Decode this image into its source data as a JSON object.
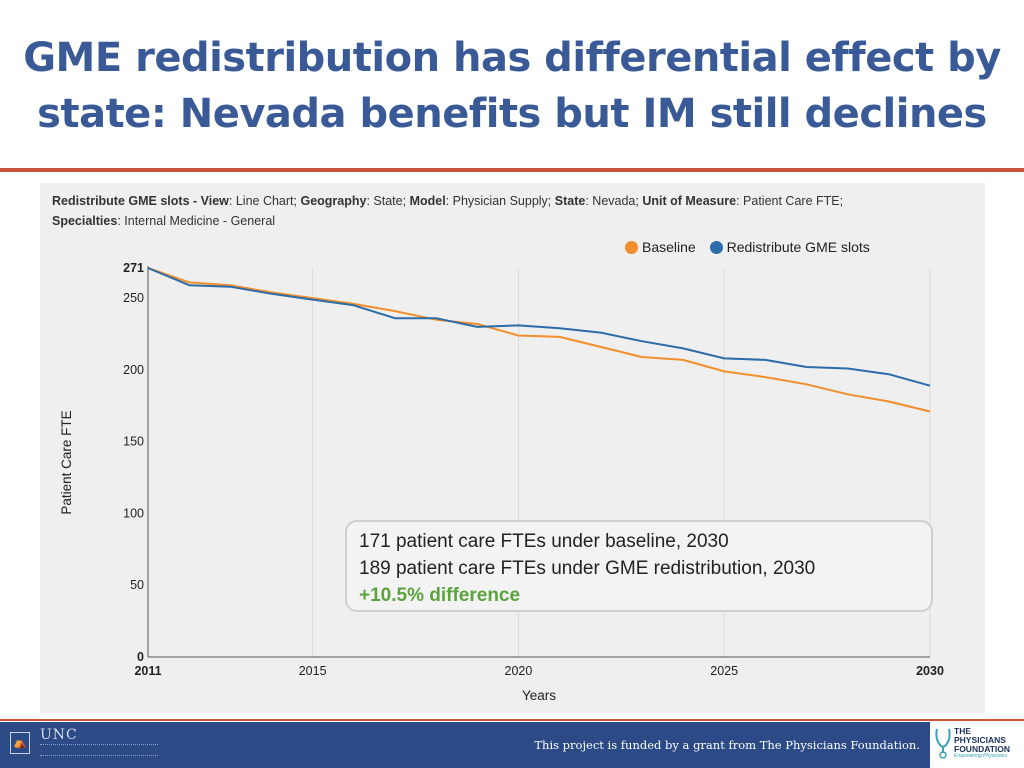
{
  "slide": {
    "title_line1": "GME redistribution has differential effect by",
    "title_line2": "state: Nevada benefits but IM still declines"
  },
  "chart_header": {
    "k1": "Redistribute GME slots - View",
    "v1": ": Line Chart; ",
    "k2": "Geography",
    "v2": ": State; ",
    "k3": "Model",
    "v3": ": Physician Supply; ",
    "k4": "State",
    "v4": ": Nevada; ",
    "k5": "Unit of Measure",
    "v5": ": Patient Care FTE;",
    "k6": "Specialties",
    "v6": ": Internal Medicine - General"
  },
  "chart_data": {
    "type": "line",
    "xlabel": "Years",
    "ylabel": "Patient Care FTE",
    "xlim": [
      2011,
      2030
    ],
    "ylim": [
      0,
      271
    ],
    "x_ticks": [
      {
        "value": 2011,
        "label": "2011",
        "bold": true
      },
      {
        "value": 2015,
        "label": "2015",
        "bold": false
      },
      {
        "value": 2020,
        "label": "2020",
        "bold": false
      },
      {
        "value": 2025,
        "label": "2025",
        "bold": false
      },
      {
        "value": 2030,
        "label": "2030",
        "bold": true
      }
    ],
    "y_ticks": [
      {
        "value": 0,
        "label": "0",
        "bold": true
      },
      {
        "value": 50,
        "label": "50",
        "bold": false
      },
      {
        "value": 100,
        "label": "100",
        "bold": false
      },
      {
        "value": 150,
        "label": "150",
        "bold": false
      },
      {
        "value": 200,
        "label": "200",
        "bold": false
      },
      {
        "value": 250,
        "label": "250",
        "bold": false
      },
      {
        "value": 271,
        "label": "271",
        "bold": true
      }
    ],
    "gridlines": "vertical-at-x-ticks",
    "legend_position": "top-right",
    "x": [
      2011,
      2012,
      2013,
      2014,
      2015,
      2016,
      2017,
      2018,
      2019,
      2020,
      2021,
      2022,
      2023,
      2024,
      2025,
      2026,
      2027,
      2028,
      2029,
      2030
    ],
    "series": [
      {
        "name": "Baseline",
        "color": "#f28e2b",
        "values": [
          271,
          261,
          259,
          254,
          250,
          246,
          241,
          235,
          232,
          224,
          223,
          216,
          209,
          207,
          199,
          195,
          190,
          183,
          178,
          171
        ]
      },
      {
        "name": "Redistribute GME slots",
        "color": "#2c6ca8",
        "values": [
          271,
          259,
          258,
          253,
          249,
          245,
          236,
          236,
          230,
          231,
          229,
          226,
          220,
          215,
          208,
          207,
          202,
          201,
          197,
          189
        ]
      }
    ]
  },
  "callout": {
    "line1": "171 patient care FTEs under baseline, 2030",
    "line2": "189 patient care FTEs under GME redistribution, 2030",
    "line3": "+10.5% difference",
    "line3_color": "#5aa33d"
  },
  "footer": {
    "funding_text": "This project is funded by a grant from The Physicians Foundation.",
    "unc_logo_text": "UNC",
    "pf_logo_line1": "THE",
    "pf_logo_line2": "PHYSICIANS",
    "pf_logo_line3": "FOUNDATION",
    "pf_logo_tag": "Empowering Physicians",
    "bar_color": "#2b4a86"
  }
}
